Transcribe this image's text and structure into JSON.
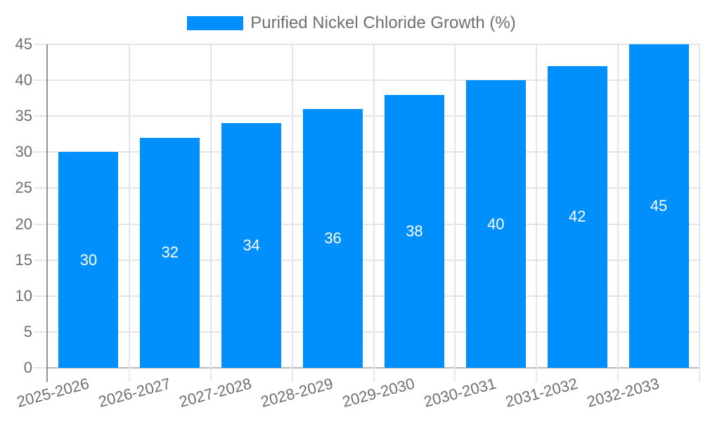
{
  "legend": {
    "label": "Purified Nickel Chloride Growth (%)"
  },
  "colors": {
    "bar": "#008FFB",
    "grid": "#e4e4e4",
    "y_axis_line": "#8f9396",
    "x_axis_line": "#b8bcbe",
    "x_tick": "#e8e8e8",
    "axis_label_text": "#6f6f6f",
    "value_label_text": "#ffffff",
    "background": "#ffffff"
  },
  "chart_data": {
    "type": "bar",
    "title": "Purified Nickel Chloride Growth (%)",
    "categories": [
      "2025-2026",
      "2026-2027",
      "2027-2028",
      "2028-2029",
      "2029-2030",
      "2030-2031",
      "2031-2032",
      "2032-2033"
    ],
    "values": [
      30,
      32,
      34,
      36,
      38,
      40,
      42,
      45
    ],
    "xlabel": "",
    "ylabel": "",
    "ylim": [
      0,
      45
    ],
    "ytick_step": 5,
    "grid": "both",
    "legend_position": "top",
    "value_label_position": "inside-center",
    "x_label_rotation_deg": -15
  }
}
